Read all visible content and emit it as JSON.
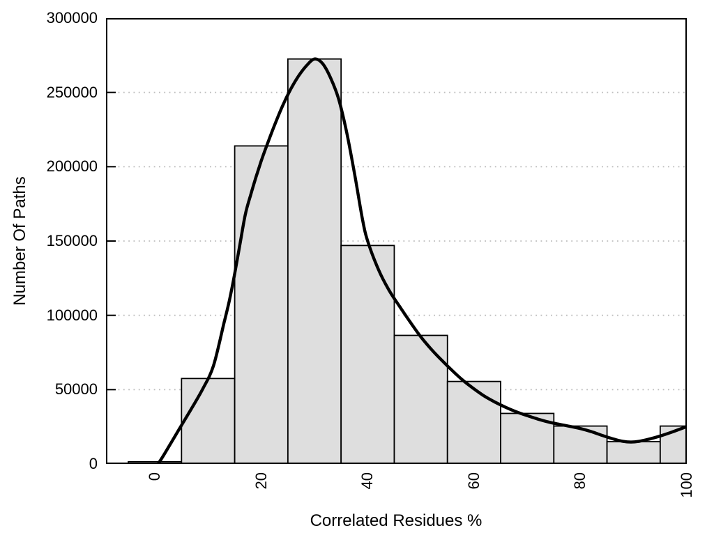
{
  "chart_data": {
    "type": "bar",
    "subtype": "histogram-with-density-curve",
    "title": "",
    "xlabel": "Correlated Residues %",
    "ylabel": "Number Of Paths",
    "xlim": [
      -9.2,
      100
    ],
    "ylim": [
      0,
      300000
    ],
    "x_ticks": [
      0,
      20,
      40,
      60,
      80,
      100
    ],
    "y_ticks": [
      0,
      50000,
      100000,
      150000,
      200000,
      250000,
      300000
    ],
    "grid": {
      "horizontal_dotted_at": [
        50000,
        100000,
        150000,
        200000,
        250000
      ],
      "color": "#bdbdbd"
    },
    "legend": "none",
    "colors": {
      "bar_fill": "#dedede",
      "bar_edge": "#000000",
      "curve": "#000000",
      "frame": "#000000",
      "background": "#ffffff"
    },
    "bars": {
      "bin_width": 10,
      "bins": [
        {
          "x0": -5,
          "x1": 5,
          "value": 1500
        },
        {
          "x0": 5,
          "x1": 15,
          "value": 57500
        },
        {
          "x0": 15,
          "x1": 25,
          "value": 214000
        },
        {
          "x0": 25,
          "x1": 35,
          "value": 272500
        },
        {
          "x0": 35,
          "x1": 45,
          "value": 147000
        },
        {
          "x0": 45,
          "x1": 55,
          "value": 86500
        },
        {
          "x0": 55,
          "x1": 65,
          "value": 55500
        },
        {
          "x0": 65,
          "x1": 75,
          "value": 34000
        },
        {
          "x0": 75,
          "x1": 85,
          "value": 25500
        },
        {
          "x0": 85,
          "x1": 95,
          "value": 15000
        },
        {
          "x0": 95,
          "x1": 100,
          "value": 25500
        }
      ]
    },
    "curve": {
      "description": "smooth density estimate overlay, peak ~272500 at x=30, local minimum ~14700 at x=89.5",
      "points": [
        [
          0.65,
          300
        ],
        [
          1.5,
          5000
        ],
        [
          3,
          14000
        ],
        [
          5,
          26000
        ],
        [
          7,
          38000
        ],
        [
          9,
          50500
        ],
        [
          11,
          66000
        ],
        [
          13,
          95000
        ],
        [
          14,
          110000
        ],
        [
          15,
          128000
        ],
        [
          16,
          148000
        ],
        [
          17,
          168000
        ],
        [
          18,
          181000
        ],
        [
          19,
          193000
        ],
        [
          20,
          204000
        ],
        [
          21,
          214000
        ],
        [
          22.5,
          228000
        ],
        [
          24,
          241000
        ],
        [
          25.5,
          252000
        ],
        [
          27,
          261000
        ],
        [
          28.5,
          268000
        ],
        [
          30,
          272500
        ],
        [
          31.5,
          269500
        ],
        [
          33,
          260000
        ],
        [
          34.5,
          246000
        ],
        [
          36,
          224000
        ],
        [
          37.5,
          196000
        ],
        [
          39,
          165000
        ],
        [
          40,
          150000
        ],
        [
          42,
          131000
        ],
        [
          44,
          117000
        ],
        [
          46,
          106000
        ],
        [
          48,
          95500
        ],
        [
          50,
          85500
        ],
        [
          52,
          77000
        ],
        [
          54,
          69500
        ],
        [
          56,
          62500
        ],
        [
          58,
          56000
        ],
        [
          60,
          50500
        ],
        [
          62,
          45500
        ],
        [
          64,
          41500
        ],
        [
          66,
          38000
        ],
        [
          68,
          35000
        ],
        [
          70,
          32500
        ],
        [
          72,
          30200
        ],
        [
          74,
          28200
        ],
        [
          76,
          26700
        ],
        [
          78,
          25300
        ],
        [
          80,
          23800
        ],
        [
          82,
          21800
        ],
        [
          84,
          19300
        ],
        [
          86,
          17000
        ],
        [
          88,
          15200
        ],
        [
          89.5,
          14700
        ],
        [
          91,
          15200
        ],
        [
          93,
          16800
        ],
        [
          95,
          18800
        ],
        [
          97,
          21200
        ],
        [
          100,
          25200
        ]
      ]
    }
  }
}
